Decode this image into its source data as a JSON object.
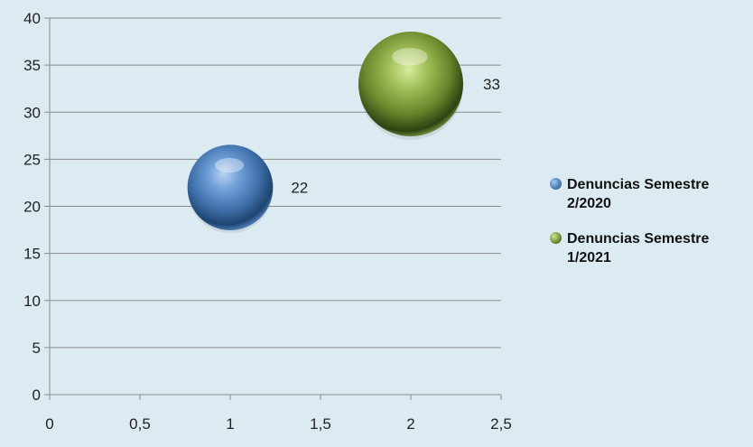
{
  "chart_data": {
    "type": "bubble",
    "xlim": [
      0,
      2.5
    ],
    "ylim": [
      0,
      40
    ],
    "xticks": [
      "0",
      "0,5",
      "1",
      "1,5",
      "2",
      "2,5"
    ],
    "yticks": [
      "0",
      "5",
      "10",
      "15",
      "20",
      "25",
      "30",
      "35",
      "40"
    ],
    "grid": "horizontal",
    "legend_position": "right",
    "series": [
      {
        "name": "Denuncias Semestre 2/2020",
        "x": 1,
        "y": 22,
        "size": 22,
        "label": "22",
        "color": "#4f81bd"
      },
      {
        "name": "Denuncias Semestre 1/2021",
        "x": 2,
        "y": 33,
        "size": 33,
        "label": "33",
        "color": "#77933c"
      }
    ]
  }
}
